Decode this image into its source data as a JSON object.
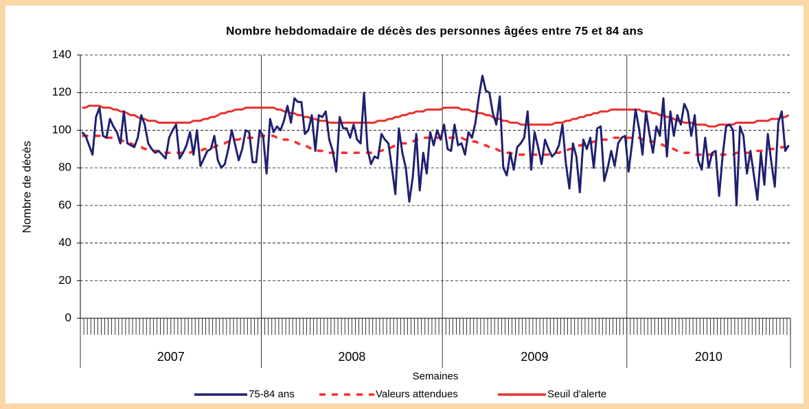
{
  "chart_data": {
    "type": "line",
    "title": "Nombre hebdomadaire de décès des personnes âgées entre 75 et 84 ans",
    "x_label": "Semaines",
    "y_label": "Nombre de décès",
    "ylim": [
      0,
      140
    ],
    "yticks": [
      0,
      20,
      40,
      60,
      80,
      100,
      120,
      140
    ],
    "grid": true,
    "legend": "bottom",
    "x_groups": [
      {
        "label": "2007",
        "count": 52
      },
      {
        "label": "2008",
        "count": 52
      },
      {
        "label": "2009",
        "count": 53
      },
      {
        "label": "2010",
        "count": 47
      }
    ],
    "categories": [
      null,
      null,
      null,
      null,
      null,
      null,
      null,
      null,
      null,
      null,
      null,
      null,
      null,
      null,
      null,
      null,
      null,
      null,
      null,
      null,
      null,
      null,
      null,
      null,
      null,
      null,
      null,
      null,
      null,
      null,
      null,
      null,
      null,
      null,
      null,
      null,
      null,
      null,
      null,
      null,
      null,
      null,
      null,
      null,
      null,
      null,
      null,
      null,
      null,
      null,
      null,
      null,
      null,
      null,
      null,
      null,
      null,
      null,
      null,
      null,
      null,
      null,
      null,
      null,
      null,
      null,
      null,
      null,
      null,
      null,
      null,
      null,
      null,
      null,
      null,
      null,
      null,
      null,
      null,
      null,
      null,
      null,
      null,
      null,
      null,
      null,
      null,
      null,
      null,
      null,
      null,
      null,
      null,
      null,
      null,
      null,
      null,
      null,
      null,
      null,
      null,
      null,
      null,
      null,
      null,
      null,
      null,
      null,
      null,
      null,
      null,
      null,
      null,
      null,
      null,
      null,
      null,
      null,
      null,
      null,
      null,
      null,
      null,
      null,
      null,
      null,
      null,
      null,
      null,
      null,
      null,
      null,
      null,
      null,
      null,
      null,
      null,
      null,
      null,
      null,
      null,
      null,
      null,
      null,
      null,
      null,
      null,
      null,
      null,
      null,
      null,
      null,
      null,
      null,
      null,
      null,
      null,
      null,
      null,
      null,
      null,
      null,
      null,
      null,
      null,
      null,
      null,
      null,
      null,
      null,
      null,
      null,
      null,
      null,
      null,
      null,
      null,
      null,
      null,
      null,
      null,
      null,
      null,
      null,
      null,
      null,
      null,
      null,
      null,
      null,
      null,
      null,
      null,
      null,
      null,
      null,
      null,
      null,
      null,
      null,
      null,
      null,
      null,
      null
    ],
    "series": [
      {
        "name": "75-84 ans",
        "color": "#1f2070",
        "style": "solid",
        "values": [
          99,
          97,
          92,
          87,
          107,
          112,
          97,
          96,
          106,
          102,
          99,
          93,
          110,
          93,
          92,
          91,
          96,
          108,
          103,
          93,
          90,
          88,
          89,
          87,
          85,
          96,
          100,
          103,
          85,
          88,
          92,
          99,
          87,
          100,
          81,
          85,
          89,
          90,
          97,
          84,
          80,
          82,
          90,
          100,
          92,
          84,
          90,
          100,
          99,
          83,
          83,
          100,
          97,
          77,
          106,
          99,
          102,
          100,
          105,
          113,
          104,
          117,
          115,
          115,
          98,
          100,
          108,
          89,
          108,
          107,
          110,
          95,
          89,
          78,
          107,
          101,
          101,
          96,
          103,
          95,
          93,
          120,
          90,
          82,
          86,
          85,
          98,
          95,
          93,
          80,
          66,
          101,
          88,
          80,
          62,
          75,
          98,
          68,
          88,
          77,
          99,
          92,
          100,
          95,
          103,
          90,
          89,
          103,
          92,
          93,
          87,
          99,
          96,
          104,
          118,
          129,
          121,
          120,
          109,
          103,
          118,
          80,
          76,
          88,
          79,
          91,
          93,
          96,
          110,
          79,
          99,
          91,
          82,
          95,
          90,
          86,
          88,
          92,
          103,
          82,
          69,
          93,
          86,
          67,
          95,
          90,
          96,
          80,
          101,
          102,
          73,
          80,
          89,
          81,
          93,
          96,
          97,
          78,
          93,
          111,
          101,
          87,
          110,
          98,
          88,
          102,
          97,
          117,
          86,
          110,
          97,
          108,
          103,
          114,
          110,
          97,
          108,
          84,
          79,
          96,
          80,
          88,
          89,
          65,
          86,
          102,
          103,
          100,
          60,
          102,
          97,
          77,
          89,
          76,
          63,
          88,
          71,
          98,
          83,
          70,
          104,
          110,
          89,
          92
        ]
      },
      {
        "name": "Valeurs attendues",
        "color": "#ff2a2a",
        "style": "dashed",
        "values": [
          97,
          97,
          97,
          97,
          97,
          97,
          96,
          96,
          96,
          96,
          95,
          95,
          94,
          93,
          93,
          92,
          91,
          91,
          90,
          90,
          89,
          89,
          89,
          88,
          88,
          88,
          88,
          88,
          88,
          88,
          88,
          88,
          89,
          89,
          89,
          90,
          90,
          91,
          91,
          92,
          93,
          93,
          94,
          94,
          95,
          95,
          96,
          96,
          96,
          96,
          97,
          97,
          97,
          97,
          97,
          97,
          96,
          96,
          95,
          95,
          94,
          94,
          93,
          92,
          92,
          91,
          90,
          90,
          89,
          89,
          88,
          88,
          88,
          88,
          88,
          88,
          88,
          88,
          88,
          88,
          88,
          88,
          88,
          88,
          89,
          89,
          89,
          90,
          90,
          91,
          92,
          92,
          93,
          93,
          94,
          94,
          95,
          95,
          96,
          96,
          96,
          96,
          96,
          96,
          96,
          96,
          96,
          96,
          96,
          96,
          95,
          95,
          94,
          94,
          93,
          92,
          92,
          91,
          90,
          90,
          89,
          89,
          88,
          88,
          87,
          87,
          87,
          87,
          87,
          87,
          87,
          87,
          87,
          87,
          87,
          88,
          88,
          88,
          89,
          89,
          90,
          90,
          91,
          92,
          92,
          93,
          93,
          94,
          94,
          95,
          95,
          95,
          96,
          96,
          96,
          96,
          96,
          96,
          96,
          96,
          96,
          95,
          95,
          94,
          94,
          93,
          93,
          92,
          91,
          91,
          90,
          89,
          89,
          88,
          88,
          88,
          87,
          87,
          87,
          87,
          87,
          87,
          87,
          87,
          87,
          87,
          87,
          87,
          88,
          88,
          88,
          88,
          88,
          89,
          89,
          89,
          89,
          90,
          90,
          90,
          90,
          91,
          91,
          91
        ]
      },
      {
        "name": "Seuil d'alerte",
        "color": "#e8302c",
        "style": "solid",
        "values": [
          112,
          112,
          113,
          113,
          113,
          113,
          112,
          112,
          112,
          111,
          111,
          110,
          110,
          109,
          108,
          108,
          107,
          106,
          106,
          105,
          105,
          105,
          104,
          104,
          104,
          104,
          104,
          104,
          104,
          104,
          104,
          104,
          105,
          105,
          105,
          106,
          106,
          107,
          107,
          108,
          109,
          109,
          110,
          110,
          111,
          111,
          111,
          112,
          112,
          112,
          112,
          112,
          112,
          112,
          112,
          112,
          111,
          111,
          110,
          110,
          109,
          109,
          108,
          108,
          107,
          107,
          106,
          106,
          105,
          105,
          105,
          104,
          104,
          104,
          104,
          104,
          104,
          104,
          104,
          104,
          104,
          104,
          104,
          104,
          104,
          105,
          105,
          105,
          106,
          106,
          107,
          107,
          108,
          108,
          109,
          109,
          110,
          110,
          110,
          111,
          111,
          111,
          111,
          111,
          112,
          112,
          112,
          112,
          112,
          111,
          111,
          111,
          110,
          110,
          109,
          109,
          108,
          108,
          107,
          106,
          106,
          105,
          105,
          104,
          104,
          104,
          103,
          103,
          103,
          103,
          103,
          103,
          103,
          103,
          103,
          103,
          104,
          104,
          104,
          105,
          105,
          106,
          106,
          107,
          107,
          108,
          108,
          109,
          109,
          110,
          110,
          110,
          111,
          111,
          111,
          111,
          111,
          111,
          111,
          111,
          111,
          110,
          110,
          110,
          109,
          109,
          108,
          108,
          107,
          107,
          106,
          105,
          105,
          104,
          104,
          104,
          103,
          103,
          103,
          103,
          102,
          102,
          102,
          103,
          103,
          103,
          103,
          103,
          104,
          104,
          104,
          104,
          104,
          104,
          105,
          105,
          105,
          105,
          106,
          106,
          106,
          107,
          107,
          108
        ]
      }
    ]
  }
}
